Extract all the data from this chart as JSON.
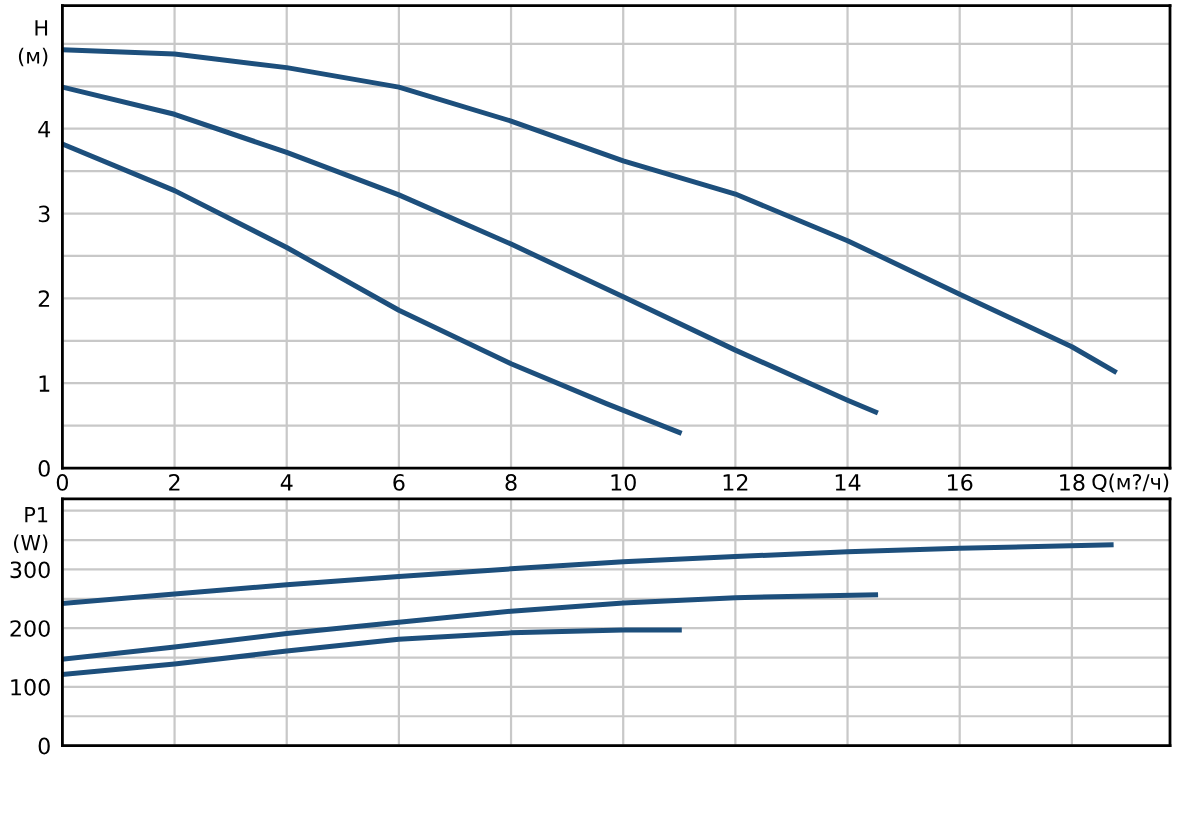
{
  "chart_data": [
    {
      "type": "line",
      "xlabel": "Q(м?/ч)",
      "ylabel": "H\n(м)",
      "grid": true,
      "legend": false,
      "xlim": [
        0,
        19.75
      ],
      "ylim": [
        0,
        5.45
      ],
      "xticks": [
        0,
        2,
        4,
        6,
        8,
        10,
        12,
        14,
        16,
        18
      ],
      "yticks": [
        0,
        {
          "value": 0.5,
          "label": null
        },
        1,
        {
          "value": 1.5,
          "label": null
        },
        2,
        {
          "value": 2.5,
          "label": null
        },
        3,
        {
          "value": 3.5,
          "label": null
        },
        4,
        {
          "value": 4.5,
          "label": null
        },
        {
          "value": 5,
          "label": null
        }
      ],
      "series": [
        {
          "color": "#1d4f7c",
          "x": [
            0,
            2,
            4,
            6,
            8,
            10,
            12,
            14,
            16,
            18,
            18.76
          ],
          "values": [
            4.93,
            4.88,
            4.72,
            4.49,
            4.09,
            3.62,
            3.23,
            2.68,
            2.05,
            1.43,
            1.14
          ]
        },
        {
          "color": "#1d4f7c",
          "x": [
            0,
            2,
            4,
            6,
            8,
            10,
            12,
            14,
            14.5
          ],
          "values": [
            4.49,
            4.17,
            3.72,
            3.22,
            2.64,
            2.02,
            1.39,
            0.8,
            0.66
          ]
        },
        {
          "color": "#1d4f7c",
          "x": [
            0,
            2,
            4,
            6,
            8,
            9.7,
            11
          ],
          "values": [
            3.82,
            3.27,
            2.6,
            1.86,
            1.23,
            0.76,
            0.42
          ]
        }
      ]
    },
    {
      "type": "line",
      "ylabel": "P1\n(W)",
      "grid": true,
      "legend": false,
      "tick_labels": "y",
      "xlim": [
        0,
        19.75
      ],
      "ylim": [
        0,
        420
      ],
      "xticks": [
        0,
        2,
        4,
        6,
        8,
        10,
        12,
        14,
        16,
        18
      ],
      "yticks": [
        0,
        {
          "value": 50,
          "label": null
        },
        100,
        {
          "value": 150,
          "label": null
        },
        200,
        {
          "value": 250,
          "label": null
        },
        300,
        {
          "value": 350,
          "label": null
        },
        {
          "value": 400,
          "label": null
        }
      ],
      "series": [
        {
          "color": "#1d4f7c",
          "x": [
            0,
            2,
            4,
            6,
            8,
            10,
            12,
            14,
            16,
            18.7
          ],
          "values": [
            242,
            258,
            274,
            288,
            301,
            313,
            322,
            330,
            336,
            342
          ]
        },
        {
          "color": "#1d4f7c",
          "x": [
            0,
            2,
            4,
            6,
            8,
            10,
            12,
            14.5
          ],
          "values": [
            147,
            168,
            191,
            210,
            229,
            243,
            252,
            257
          ]
        },
        {
          "color": "#1d4f7c",
          "x": [
            0,
            2,
            4,
            6,
            8,
            10,
            11
          ],
          "values": [
            121,
            139,
            161,
            181,
            192,
            197,
            197
          ]
        }
      ]
    }
  ]
}
